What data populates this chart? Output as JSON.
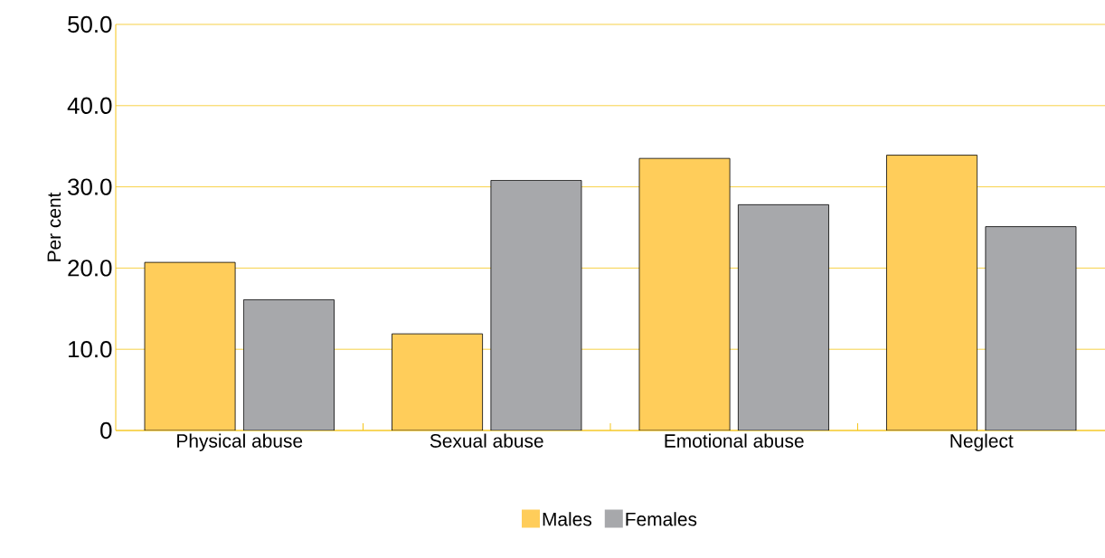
{
  "chart_data": {
    "type": "bar",
    "ylabel": "Per cent",
    "categories": [
      "Physical abuse",
      "Sexual abuse",
      "Emotional abuse",
      "Neglect"
    ],
    "series": [
      {
        "name": "Males",
        "color": "#ffcd5a",
        "values": [
          20.7,
          11.9,
          33.5,
          33.9
        ]
      },
      {
        "name": "Females",
        "color": "#a7a8ab",
        "values": [
          16.1,
          30.8,
          27.8,
          25.1
        ]
      }
    ],
    "ylim": [
      0,
      50
    ],
    "yticks": [
      0,
      {
        "value": 10,
        "label": "10.0"
      },
      {
        "value": 20,
        "label": "20.0"
      },
      {
        "value": 30,
        "label": "30.0"
      },
      {
        "value": 40,
        "label": "40.0"
      },
      {
        "value": 50,
        "label": "50.0"
      }
    ],
    "grid": "y",
    "legend": "bottom"
  }
}
